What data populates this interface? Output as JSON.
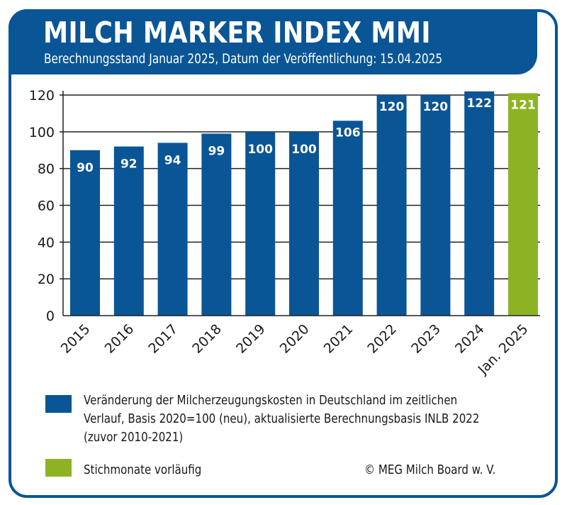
{
  "header": {
    "title": "MILCH MARKER INDEX MMI",
    "subtitle": "Berechnungsstand Januar 2025, Datum der Veröffentlichung: 15.04.2025"
  },
  "colors": {
    "brand_blue": "#0a5595",
    "provisional_green": "#8db324",
    "grid": "#222222"
  },
  "chart_data": {
    "type": "bar",
    "title": "MILCH MARKER INDEX MMI",
    "subtitle": "Berechnungsstand Januar 2025, Datum der Veröffentlichung: 15.04.2025",
    "xlabel": "",
    "ylabel": "",
    "categories": [
      "2015",
      "2016",
      "2017",
      "2018",
      "2019",
      "2020",
      "2021",
      "2022",
      "2023",
      "2024",
      "Jan. 2025"
    ],
    "values": [
      90,
      92,
      94,
      99,
      100,
      100,
      106,
      120,
      120,
      122,
      121
    ],
    "data_labels": [
      "90",
      "92",
      "94",
      "99",
      "100",
      "100",
      "106",
      "120",
      "120",
      "122",
      "121"
    ],
    "series_membership": [
      "index",
      "index",
      "index",
      "index",
      "index",
      "index",
      "index",
      "index",
      "index",
      "index",
      "provisional"
    ],
    "ylim": [
      0,
      120
    ],
    "yticks": [
      0,
      20,
      40,
      60,
      80,
      100,
      120
    ],
    "grid": true,
    "legend_position": "bottom",
    "legend": [
      {
        "key": "index",
        "color": "#0a5595",
        "lines": [
          "Veränderung der Milcherzeugungskosten in Deutschland im zeitlichen",
          "Verlauf, Basis 2020=100 (neu), aktualisierte Berechnungsbasis INLB 2022",
          "(zuvor 2010-2021)"
        ]
      },
      {
        "key": "provisional",
        "color": "#8db324",
        "lines": [
          "Stichmonate vorläufig"
        ]
      }
    ]
  },
  "footer": {
    "copyright": "© MEG Milch Board w. V."
  }
}
